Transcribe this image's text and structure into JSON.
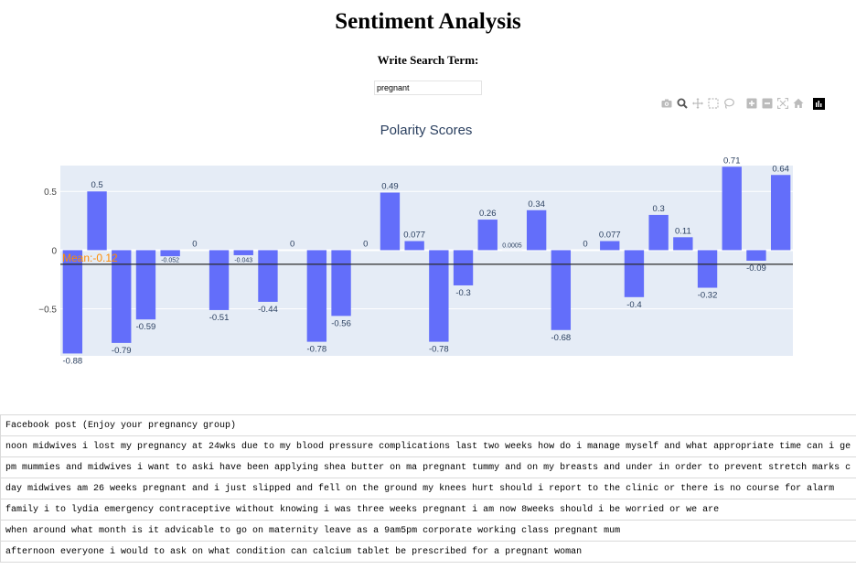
{
  "page": {
    "title": "Sentiment Analysis",
    "search_label": "Write Search Term:",
    "search_value": "pregnant"
  },
  "toolbar": {
    "icons": [
      "camera-icon",
      "zoom-icon",
      "pan-icon",
      "box-select-icon",
      "lasso-select-icon",
      "zoom-in-icon",
      "zoom-out-icon",
      "autoscale-icon",
      "reset-axes-icon",
      "plotly-logo-icon"
    ]
  },
  "chart_data": {
    "type": "bar",
    "title": "Polarity Scores",
    "xlabel": "",
    "ylabel": "",
    "ylim": [
      -0.9,
      0.72
    ],
    "yticks": [
      0.5,
      0,
      -0.5
    ],
    "ytick_labels": [
      "0.5",
      "0",
      "−0.5"
    ],
    "values": [
      -0.88,
      0.5,
      -0.79,
      -0.59,
      -0.052,
      0,
      -0.51,
      -0.043,
      -0.44,
      0,
      -0.78,
      -0.56,
      0,
      0.49,
      0.077,
      -0.78,
      -0.3,
      0.26,
      0.0005,
      0.34,
      -0.68,
      0,
      0.077,
      -0.4,
      0.3,
      0.11,
      -0.32,
      0.71,
      -0.09,
      0.64
    ],
    "labels": [
      "-0.88",
      "0.5",
      "-0.79",
      "-0.59",
      "-0.052",
      "0",
      "-0.51",
      "-0.043",
      "-0.44",
      "0",
      "-0.78",
      "-0.56",
      "0",
      "0.49",
      "0.077",
      "-0.78",
      "-0.3",
      "0.26",
      "0.0005",
      "0.34",
      "-0.68",
      "0",
      "0.077",
      "-0.4",
      "0.3",
      "0.11",
      "-0.32",
      "0.71",
      "-0.09",
      "0.64"
    ],
    "mean": -0.12,
    "mean_label": "Mean:-0.12",
    "bar_color": "#636efa",
    "plot_bg": "#e5ecf6",
    "mean_color": "#ff8c00",
    "grid": true,
    "legend": "none"
  },
  "table": {
    "header": "Facebook post (Enjoy your pregnancy group)",
    "rows": [
      "noon midwives i lost my pregnancy at 24wks due to my blood pressure complications last two weeks how do i manage myself and what appropriate time can i ge",
      "pm mummies and midwives i want to aski have been applying shea butter on ma pregnant tummy and on my breasts and under in order to prevent stretch marks c",
      "day midwives am 26 weeks pregnant and i just slipped and fell on the ground my knees hurt should i report to the clinic or there is no course for alarm",
      "family i to lydia emergency contraceptive without knowing i was three weeks pregnant i am now 8weeks should i be worried or we are",
      "when around what month is it advicable to go on maternity leave as a 9am5pm corporate working class pregnant mum",
      "afternoon everyone i would to ask on what condition can calcium tablet be prescribed for a pregnant woman"
    ]
  }
}
